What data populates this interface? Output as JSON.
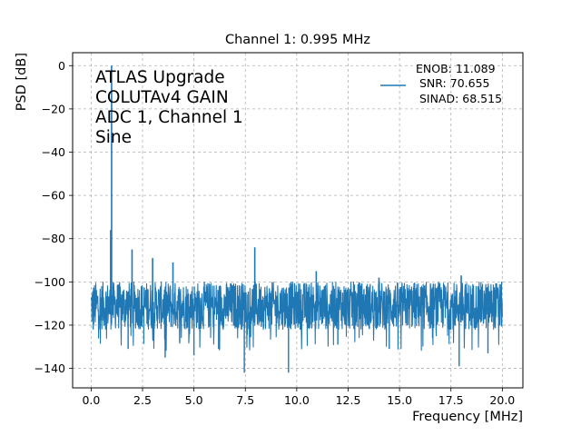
{
  "chart_data": {
    "type": "line",
    "title": "Channel 1: 0.995 MHz",
    "xlabel": "Frequency [MHz]",
    "ylabel": "PSD [dB]",
    "xlim": [
      -0.9,
      21.0
    ],
    "ylim": [
      -149,
      6
    ],
    "x_ticks": [
      0.0,
      2.5,
      5.0,
      7.5,
      10.0,
      12.5,
      15.0,
      17.5,
      20.0
    ],
    "x_tick_labels": [
      "0.0",
      "2.5",
      "5.0",
      "7.5",
      "10.0",
      "12.5",
      "15.0",
      "17.5",
      "20.0"
    ],
    "y_ticks": [
      0,
      -20,
      -40,
      -60,
      -80,
      -100,
      -120,
      -140
    ],
    "y_tick_labels": [
      "0",
      "−20",
      "−40",
      "−60",
      "−80",
      "−100",
      "−120",
      "−140"
    ],
    "grid": true,
    "grid_style": "dashed",
    "line_color": "#1f77b4",
    "series": [
      {
        "name": "ENOB: 11.089\n SNR: 70.655\n SINAD: 68.515",
        "noise_floor": -111,
        "noise_band": [
          -122,
          -100
        ],
        "x_range": [
          0.0,
          20.0
        ],
        "peaks": [
          {
            "x": 0.995,
            "y": 0
          },
          {
            "x": 0.95,
            "y": -76
          },
          {
            "x": 1.99,
            "y": -85
          },
          {
            "x": 2.99,
            "y": -89
          },
          {
            "x": 3.98,
            "y": -91
          },
          {
            "x": 7.96,
            "y": -84
          },
          {
            "x": 10.95,
            "y": -95
          },
          {
            "x": 14.0,
            "y": -98
          },
          {
            "x": 18.0,
            "y": -97
          }
        ],
        "dips": [
          {
            "x": 0.1,
            "y": -122
          },
          {
            "x": 1.8,
            "y": -131
          },
          {
            "x": 3.6,
            "y": -135
          },
          {
            "x": 5.0,
            "y": -134
          },
          {
            "x": 6.2,
            "y": -131
          },
          {
            "x": 7.45,
            "y": -142
          },
          {
            "x": 9.6,
            "y": -142
          },
          {
            "x": 12.0,
            "y": -129
          },
          {
            "x": 14.5,
            "y": -131
          },
          {
            "x": 17.9,
            "y": -139
          },
          {
            "x": 19.3,
            "y": -133
          }
        ]
      }
    ],
    "legend": {
      "position": "top-right",
      "lines": [
        "ENOB: 11.089",
        " SNR: 70.655",
        " SINAD: 68.515"
      ]
    },
    "annotation": {
      "position": "top-left",
      "lines": [
        "ATLAS Upgrade",
        "COLUTAv4 GAIN",
        "ADC 1, Channel 1",
        "Sine"
      ]
    }
  }
}
